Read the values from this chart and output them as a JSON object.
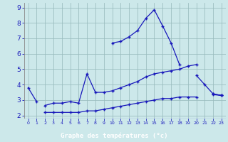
{
  "xlabel": "Graphe des températures (°c)",
  "x": [
    0,
    1,
    2,
    3,
    4,
    5,
    6,
    7,
    8,
    9,
    10,
    11,
    12,
    13,
    14,
    15,
    16,
    17,
    18,
    19,
    20,
    21,
    22,
    23
  ],
  "line1_y": [
    3.8,
    2.9,
    null,
    null,
    null,
    null,
    null,
    null,
    null,
    null,
    6.7,
    6.8,
    7.1,
    7.5,
    8.3,
    8.85,
    7.8,
    6.7,
    5.3,
    null,
    4.6,
    4.0,
    3.4,
    3.3
  ],
  "line2_y": [
    null,
    null,
    2.65,
    2.8,
    2.8,
    2.9,
    2.8,
    4.7,
    3.5,
    3.5,
    3.6,
    3.8,
    4.0,
    4.2,
    4.5,
    4.7,
    4.8,
    4.9,
    5.0,
    5.2,
    5.3,
    null,
    3.4,
    3.3
  ],
  "line3_y": [
    null,
    null,
    2.2,
    2.2,
    2.2,
    2.2,
    2.2,
    2.3,
    2.3,
    2.4,
    2.5,
    2.6,
    2.7,
    2.8,
    2.9,
    3.0,
    3.1,
    3.1,
    3.2,
    3.2,
    3.2,
    null,
    3.35,
    3.3
  ],
  "line_color": "#1818bb",
  "bg_color": "#cce8ea",
  "grid_color": "#99bbbd",
  "bottom_bar_color": "#0000aa",
  "bottom_bar_text_color": "#0000aa",
  "ylim": [
    1.8,
    9.3
  ],
  "xlim": [
    -0.5,
    23.5
  ],
  "yticks": [
    2,
    3,
    4,
    5,
    6,
    7,
    8,
    9
  ],
  "xticks": [
    0,
    1,
    2,
    3,
    4,
    5,
    6,
    7,
    8,
    9,
    10,
    11,
    12,
    13,
    14,
    15,
    16,
    17,
    18,
    19,
    20,
    21,
    22,
    23
  ],
  "xtick_labels": [
    "0",
    "1",
    "2",
    "3",
    "4",
    "5",
    "6",
    "7",
    "8",
    "9",
    "10",
    "11",
    "12",
    "13",
    "14",
    "15",
    "16",
    "17",
    "18",
    "19",
    "20",
    "21",
    "22",
    "23"
  ]
}
